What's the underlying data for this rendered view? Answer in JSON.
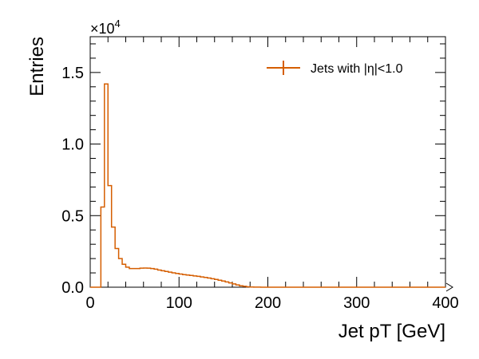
{
  "chart_data": {
    "type": "histogram",
    "xlabel": "Jet pT [GeV]",
    "ylabel": "Entries",
    "y_multiplier": {
      "base": "×10",
      "exponent": "4"
    },
    "xlim": [
      0,
      400
    ],
    "ylim": [
      0,
      17500
    ],
    "x_major_ticks": [
      0,
      100,
      200,
      300,
      400
    ],
    "x_tick_labels": [
      "0",
      "100",
      "200",
      "300",
      "400"
    ],
    "y_major_ticks": [
      0,
      5000,
      10000,
      15000
    ],
    "y_tick_labels": [
      "0.0",
      "0.5",
      "1.0",
      "1.5"
    ],
    "bin_width": 4,
    "series": [
      {
        "name": "Jets with |η|<1.0",
        "color": "#d55e00",
        "bin_edges_start": 0,
        "values": [
          0,
          0,
          0,
          5600,
          14200,
          7100,
          4200,
          2700,
          2000,
          1600,
          1400,
          1300,
          1300,
          1300,
          1330,
          1340,
          1330,
          1300,
          1260,
          1200,
          1150,
          1100,
          1050,
          1000,
          960,
          920,
          880,
          850,
          820,
          790,
          760,
          720,
          680,
          640,
          590,
          540,
          490,
          430,
          370,
          300,
          230,
          160,
          100,
          60,
          30,
          15,
          8,
          4,
          2,
          1,
          0
        ]
      }
    ],
    "legend_position": "top-right",
    "grid": false
  }
}
